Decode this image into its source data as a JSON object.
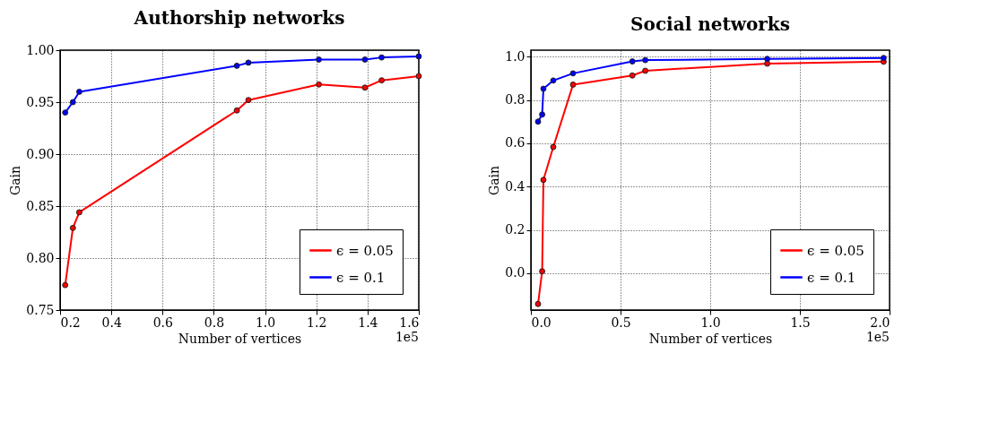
{
  "chart_data": [
    {
      "type": "line",
      "title": "Authorship networks",
      "xlabel": "Number of vertices",
      "ylabel": "Gain",
      "annotations": [
        "1e5"
      ],
      "x": [
        0.22,
        0.25,
        0.275,
        0.89,
        0.935,
        1.21,
        1.39,
        1.455,
        1.6
      ],
      "series": [
        {
          "name": "ϵ = 0.05",
          "color": "#ff0000",
          "values": [
            0.774,
            0.829,
            0.844,
            0.942,
            0.952,
            0.967,
            0.964,
            0.971,
            0.975
          ]
        },
        {
          "name": "ϵ = 0.1",
          "color": "#0000ff",
          "values": [
            0.94,
            0.95,
            0.96,
            0.985,
            0.988,
            0.991,
            0.991,
            0.993,
            0.994
          ]
        }
      ],
      "xlim": [
        0.2,
        1.6
      ],
      "ylim": [
        0.75,
        1.0
      ],
      "xticks": [
        {
          "value": 0.2,
          "label": "0.2"
        },
        {
          "value": 0.4,
          "label": "0.4"
        },
        {
          "value": 0.6,
          "label": "0.6"
        },
        {
          "value": 0.8,
          "label": "0.8"
        },
        {
          "value": 1.0,
          "label": "1.0"
        },
        {
          "value": 1.2,
          "label": "1.2"
        },
        {
          "value": 1.4,
          "label": "1.4"
        },
        {
          "value": 1.6,
          "label": "1.6"
        }
      ],
      "yticks": [
        {
          "value": 0.75,
          "label": "0.75"
        },
        {
          "value": 0.8,
          "label": "0.80"
        },
        {
          "value": 0.85,
          "label": "0.85"
        },
        {
          "value": 0.9,
          "label": "0.90"
        },
        {
          "value": 0.95,
          "label": "0.95"
        },
        {
          "value": 1.0,
          "label": "1.00"
        }
      ],
      "grid": true,
      "legend": "bottom right",
      "marker": "circle",
      "line_style": "solid"
    },
    {
      "type": "line",
      "title": "Social networks",
      "xlabel": "Number of vertices",
      "ylabel": "Gain",
      "annotations": [
        "1e5"
      ],
      "x": [
        0.04,
        0.063,
        0.07,
        0.125,
        0.235,
        0.566,
        0.638,
        1.318,
        1.967
      ],
      "series": [
        {
          "name": "ϵ = 0.05",
          "color": "#ff0000",
          "values": [
            -0.142,
            0.009,
            0.431,
            0.583,
            0.871,
            0.913,
            0.935,
            0.968,
            0.977
          ]
        },
        {
          "name": "ϵ = 0.1",
          "color": "#0000ff",
          "values": [
            0.7,
            0.733,
            0.852,
            0.89,
            0.923,
            0.978,
            0.984,
            0.99,
            0.994
          ]
        }
      ],
      "xlim": [
        0.0,
        2.0
      ],
      "ylim": [
        -0.17,
        1.03
      ],
      "xticks": [
        {
          "value": 0.0,
          "label": "0.0"
        },
        {
          "value": 0.5,
          "label": "0.5"
        },
        {
          "value": 1.0,
          "label": "1.0"
        },
        {
          "value": 1.5,
          "label": "1.5"
        },
        {
          "value": 2.0,
          "label": "2.0"
        }
      ],
      "yticks": [
        {
          "value": 0.0,
          "label": "0.0"
        },
        {
          "value": 0.2,
          "label": "0.2"
        },
        {
          "value": 0.4,
          "label": "0.4"
        },
        {
          "value": 0.6,
          "label": "0.6"
        },
        {
          "value": 0.8,
          "label": "0.8"
        },
        {
          "value": 1.0,
          "label": "1.0"
        }
      ],
      "grid": true,
      "legend": "bottom right",
      "marker": "circle",
      "line_style": "solid"
    }
  ]
}
